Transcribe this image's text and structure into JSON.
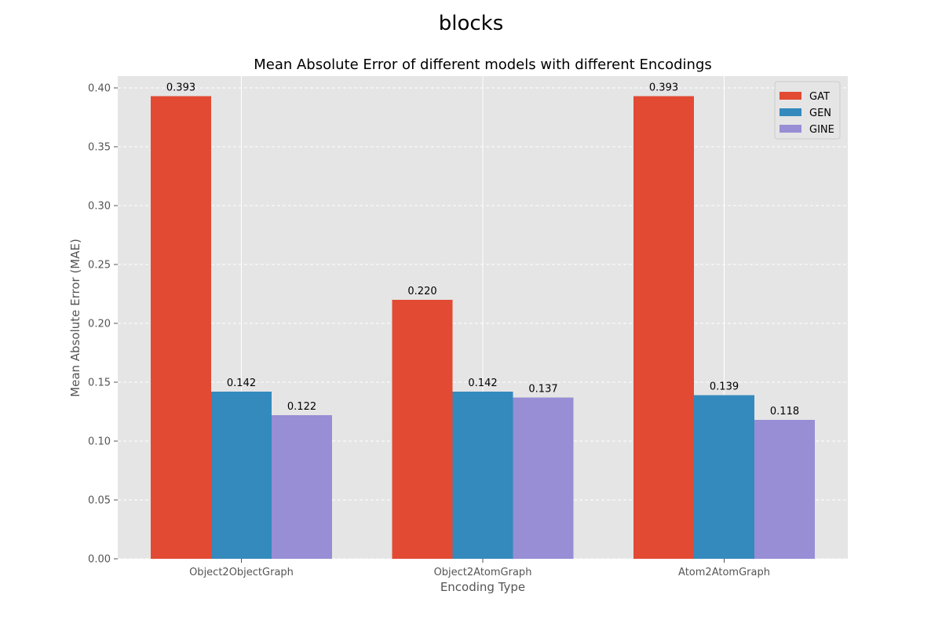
{
  "figure": {
    "suptitle": "blocks"
  },
  "colors": {
    "plot_background": "#e5e5e5",
    "grid": "#ffffff",
    "tick_text": "#555555",
    "label_text": "#555555",
    "title_text": "#000000",
    "series": [
      "#e24a33",
      "#348abd",
      "#988ed5"
    ]
  },
  "chart_data": {
    "type": "bar",
    "title": "Mean Absolute Error of different models with different Encodings",
    "xlabel": "Encoding Type",
    "ylabel": "Mean Absolute Error (MAE)",
    "categories": [
      "Object2ObjectGraph",
      "Object2AtomGraph",
      "Atom2AtomGraph"
    ],
    "series": [
      {
        "name": "GAT",
        "values": [
          0.393,
          0.22,
          0.393
        ]
      },
      {
        "name": "GEN",
        "values": [
          0.142,
          0.142,
          0.139
        ]
      },
      {
        "name": "GINE",
        "values": [
          0.122,
          0.137,
          0.118
        ]
      }
    ],
    "data_labels": [
      [
        "0.393",
        "0.220",
        "0.393"
      ],
      [
        "0.142",
        "0.142",
        "0.139"
      ],
      [
        "0.122",
        "0.137",
        "0.118"
      ]
    ],
    "ylim": [
      0,
      0.41
    ],
    "yticks": [
      0.0,
      0.05,
      0.1,
      0.15,
      0.2,
      0.25,
      0.3,
      0.35,
      0.4
    ],
    "ytick_labels": [
      "0.00",
      "0.05",
      "0.10",
      "0.15",
      "0.20",
      "0.25",
      "0.30",
      "0.35",
      "0.40"
    ],
    "grid": true,
    "legend_position": "top-right"
  }
}
